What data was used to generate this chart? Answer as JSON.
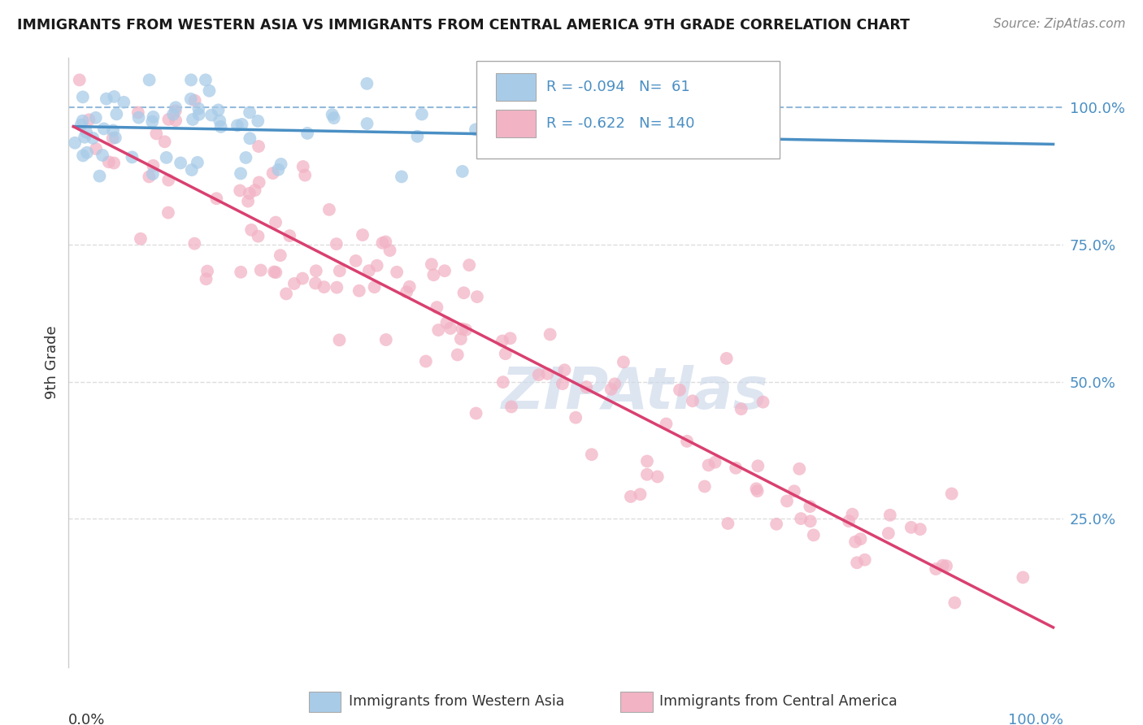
{
  "title": "IMMIGRANTS FROM WESTERN ASIA VS IMMIGRANTS FROM CENTRAL AMERICA 9TH GRADE CORRELATION CHART",
  "source": "Source: ZipAtlas.com",
  "ylabel": "9th Grade",
  "blue_R": -0.094,
  "blue_N": 61,
  "pink_R": -0.622,
  "pink_N": 140,
  "blue_fill_color": "#A8CBE8",
  "pink_fill_color": "#F2B3C5",
  "blue_line_color": "#4A8FC4",
  "pink_line_color": "#D94070",
  "legend_blue": "Immigrants from Western Asia",
  "legend_pink": "Immigrants from Central America",
  "watermark_text": "ZIPAtlas",
  "watermark_color": "#CBD8EA",
  "grid_color": "#DDDDDD",
  "bg_color": "#FFFFFF",
  "text_color": "#4A8FC4",
  "label_color": "#333333",
  "yright_labels": [
    "100.0%",
    "75.0%",
    "50.0%",
    "25.0%",
    ""
  ],
  "ytick_vals": [
    1.0,
    0.75,
    0.5,
    0.25,
    0.0
  ]
}
